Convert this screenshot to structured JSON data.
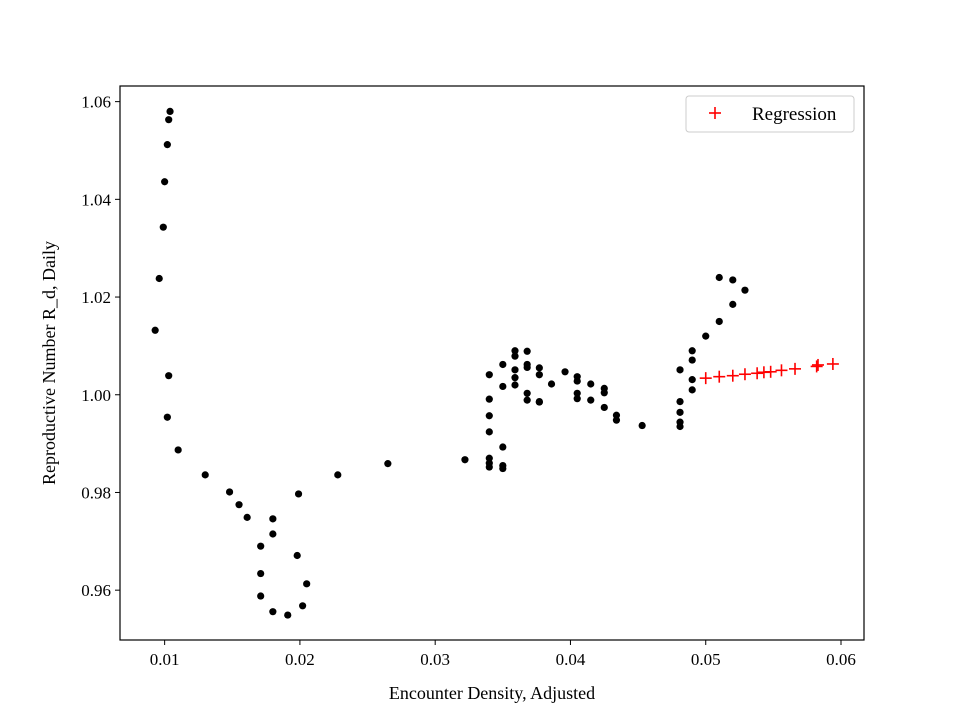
{
  "chart_data": {
    "type": "scatter",
    "xlabel": "Encounter Density, Adjusted",
    "ylabel": "Reproductive Number R_d, Daily",
    "xlim": [
      0.0067,
      0.0617
    ],
    "ylim": [
      0.9498,
      1.0632
    ],
    "xticks": [
      0.01,
      0.02,
      0.03,
      0.04,
      0.05,
      0.06
    ],
    "xtick_labels": [
      "0.01",
      "0.02",
      "0.03",
      "0.04",
      "0.05",
      "0.06"
    ],
    "yticks": [
      0.96,
      0.98,
      1.0,
      1.02,
      1.04,
      1.06
    ],
    "ytick_labels": [
      "0.96",
      "0.98",
      "1.00",
      "1.02",
      "1.04",
      "1.06"
    ],
    "grid": false,
    "legend": {
      "position": "top-right",
      "entries": [
        {
          "label": "Regression",
          "marker": "+",
          "color": "#ff0000"
        }
      ]
    },
    "series": [
      {
        "marker": "dot",
        "color": "#000000",
        "points": [
          [
            0.0104,
            1.058
          ],
          [
            0.0103,
            1.0563
          ],
          [
            0.0102,
            1.0512
          ],
          [
            0.01,
            1.0436
          ],
          [
            0.0099,
            1.0343
          ],
          [
            0.0096,
            1.0238
          ],
          [
            0.0093,
            1.0132
          ],
          [
            0.0103,
            1.0039
          ],
          [
            0.0102,
            0.9954
          ],
          [
            0.011,
            0.9887
          ],
          [
            0.013,
            0.9836
          ],
          [
            0.0148,
            0.9801
          ],
          [
            0.0155,
            0.9775
          ],
          [
            0.0161,
            0.9749
          ],
          [
            0.0171,
            0.969
          ],
          [
            0.0171,
            0.9634
          ],
          [
            0.0171,
            0.9588
          ],
          [
            0.018,
            0.9556
          ],
          [
            0.0191,
            0.9549
          ],
          [
            0.0202,
            0.9568
          ],
          [
            0.0205,
            0.9613
          ],
          [
            0.0198,
            0.9671
          ],
          [
            0.018,
            0.9715
          ],
          [
            0.018,
            0.9746
          ],
          [
            0.0199,
            0.9797
          ],
          [
            0.0228,
            0.9836
          ],
          [
            0.0265,
            0.9859
          ],
          [
            0.0322,
            0.9867
          ],
          [
            0.034,
            0.987
          ],
          [
            0.034,
            0.986
          ],
          [
            0.034,
            0.9852
          ],
          [
            0.035,
            0.9855
          ],
          [
            0.035,
            0.9849
          ],
          [
            0.035,
            0.9893
          ],
          [
            0.034,
            0.9924
          ],
          [
            0.034,
            0.9957
          ],
          [
            0.034,
            0.9991
          ],
          [
            0.034,
            1.0041
          ],
          [
            0.035,
            1.0062
          ],
          [
            0.035,
            1.0017
          ],
          [
            0.0359,
            1.009
          ],
          [
            0.0359,
            1.0079
          ],
          [
            0.0359,
            1.0051
          ],
          [
            0.0359,
            1.0035
          ],
          [
            0.0359,
            1.002
          ],
          [
            0.0368,
            1.0089
          ],
          [
            0.0368,
            1.0062
          ],
          [
            0.0368,
            1.0056
          ],
          [
            0.0368,
            1.0003
          ],
          [
            0.0368,
            0.9989
          ],
          [
            0.0377,
            1.0055
          ],
          [
            0.0377,
            1.0041
          ],
          [
            0.0377,
            0.9986
          ],
          [
            0.0377,
            0.9985
          ],
          [
            0.0386,
            1.0022
          ],
          [
            0.0396,
            1.0047
          ],
          [
            0.0405,
            1.0037
          ],
          [
            0.0405,
            1.0028
          ],
          [
            0.0405,
            1.0003
          ],
          [
            0.0405,
            0.9992
          ],
          [
            0.0415,
            1.0022
          ],
          [
            0.0415,
            0.9989
          ],
          [
            0.0425,
            1.0013
          ],
          [
            0.0425,
            1.0004
          ],
          [
            0.0425,
            0.9974
          ],
          [
            0.0434,
            0.9958
          ],
          [
            0.0434,
            0.9948
          ],
          [
            0.0453,
            0.9937
          ],
          [
            0.0481,
            1.0051
          ],
          [
            0.0481,
            0.9986
          ],
          [
            0.0481,
            0.9964
          ],
          [
            0.0481,
            0.9944
          ],
          [
            0.0481,
            0.9935
          ],
          [
            0.049,
            1.009
          ],
          [
            0.049,
            1.0071
          ],
          [
            0.049,
            1.0031
          ],
          [
            0.049,
            1.001
          ],
          [
            0.05,
            1.012
          ],
          [
            0.051,
            1.015
          ],
          [
            0.051,
            1.024
          ],
          [
            0.052,
            1.0235
          ],
          [
            0.052,
            1.0185
          ],
          [
            0.0529,
            1.0214
          ]
        ]
      },
      {
        "name": "Regression",
        "marker": "+",
        "color": "#ff0000",
        "points": [
          [
            0.05,
            1.0034
          ],
          [
            0.051,
            1.0037
          ],
          [
            0.052,
            1.0039
          ],
          [
            0.0529,
            1.0042
          ],
          [
            0.0538,
            1.0044
          ],
          [
            0.0543,
            1.0046
          ],
          [
            0.0548,
            1.0047
          ],
          [
            0.0556,
            1.005
          ],
          [
            0.0566,
            1.0053
          ],
          [
            0.0582,
            1.0058
          ],
          [
            0.0583,
            1.0061
          ],
          [
            0.0594,
            1.0063
          ]
        ]
      }
    ]
  }
}
